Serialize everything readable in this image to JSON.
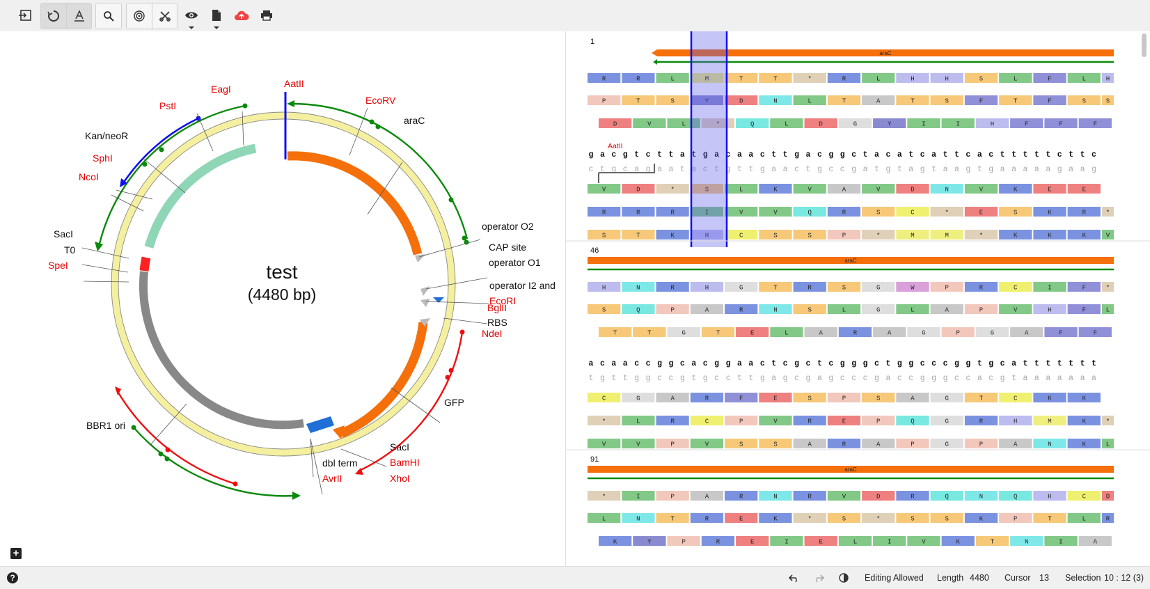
{
  "toolbar": {
    "icons": [
      "import-icon",
      "circular-view-icon",
      "linear-view-icon",
      "search-icon",
      "enzyme-digest-icon",
      "cut-icon",
      "eye-icon",
      "file-icon",
      "cloud-upload-icon",
      "print-icon"
    ]
  },
  "map": {
    "name": "test",
    "length_label": "(4480 bp)",
    "labels": {
      "AatII": "AatII",
      "EcoRV": "EcoRV",
      "araC": "araC",
      "EagI": "EagI",
      "PstI": "PstI",
      "KanNeoR": "Kan/neoR",
      "SphI": "SphI",
      "NcoI": "NcoI",
      "SacI1": "SacI",
      "T0": "T0",
      "SpeI": "SpeI",
      "BBR1ori": "BBR1 ori",
      "operatorO2": "operator O2",
      "CAPsite": "CAP site",
      "operatorO1": "operator O1",
      "operatorI2": "operator I2 and",
      "EcoRI": "EcoRI",
      "BglII": "BglII",
      "RBS": "RBS",
      "NdeI": "NdeI",
      "GFP": "GFP",
      "SacI2": "SacI",
      "BamHI": "BamHI",
      "XhoI": "XhoI",
      "dblterm": "dbl term",
      "AvrII": "AvrII"
    }
  },
  "sequence": {
    "blocks": [
      {
        "index": "1",
        "feature": "araC",
        "dna": "gacgtcttatgacaacttgacggctacatcattcactttttcttc",
        "comp": "ctgcagaatactgttgaactgccgatgtagtaagtgaaaaagaag",
        "enzyme": "AatII",
        "frames_top": [
          [
            "R",
            "R",
            "L",
            "M",
            "T",
            "T",
            "*",
            "R",
            "L",
            "H",
            "H",
            "S",
            "L",
            "F",
            "L",
            "H"
          ],
          [
            "P",
            "T",
            "S",
            "Y",
            "D",
            "N",
            "L",
            "T",
            "A",
            "T",
            "S",
            "F",
            "T",
            "F",
            "S",
            "S"
          ],
          [
            "D",
            "V",
            "L",
            "*",
            "Q",
            "L",
            "D",
            "G",
            "Y",
            "I",
            "I",
            "H",
            "F",
            "F",
            "F"
          ]
        ],
        "frames_bottom": [
          [
            "V",
            "D",
            "*",
            "S",
            "L",
            "K",
            "V",
            "A",
            "V",
            "D",
            "N",
            "V",
            "K",
            "E",
            "E"
          ],
          [
            "R",
            "R",
            "R",
            "I",
            "V",
            "V",
            "Q",
            "R",
            "S",
            "C",
            "*",
            "E",
            "S",
            "K",
            "R",
            "*"
          ],
          [
            "S",
            "T",
            "K",
            "H",
            "C",
            "S",
            "S",
            "P",
            "*",
            "M",
            "M",
            "*",
            "K",
            "K",
            "K",
            "V"
          ]
        ]
      },
      {
        "index": "46",
        "feature": "araC",
        "dna": "acaaccggcacggaactcgctcgggctggcccggtgcattttttt",
        "comp": "tgttggccgtgccttgagcgagcccgaccgggccacgtaaaaaaa",
        "frames_top": [
          [
            "H",
            "N",
            "R",
            "H",
            "G",
            "T",
            "R",
            "S",
            "G",
            "W",
            "P",
            "R",
            "C",
            "I",
            "F",
            "*"
          ],
          [
            "S",
            "Q",
            "P",
            "A",
            "R",
            "N",
            "S",
            "L",
            "G",
            "L",
            "A",
            "P",
            "V",
            "H",
            "F",
            "L"
          ],
          [
            "T",
            "T",
            "G",
            "T",
            "E",
            "L",
            "A",
            "R",
            "A",
            "G",
            "P",
            "G",
            "A",
            "F",
            "F"
          ]
        ],
        "frames_bottom": [
          [
            "C",
            "G",
            "A",
            "R",
            "F",
            "E",
            "S",
            "P",
            "S",
            "A",
            "G",
            "T",
            "C",
            "K",
            "K"
          ],
          [
            "*",
            "L",
            "R",
            "C",
            "P",
            "V",
            "R",
            "E",
            "P",
            "Q",
            "G",
            "R",
            "H",
            "M",
            "K",
            "*"
          ],
          [
            "V",
            "V",
            "P",
            "V",
            "S",
            "S",
            "A",
            "R",
            "A",
            "P",
            "G",
            "P",
            "A",
            "N",
            "K",
            "L"
          ]
        ]
      },
      {
        "index": "91",
        "feature": "araC",
        "frames_top": [
          [
            "*",
            "I",
            "P",
            "A",
            "R",
            "N",
            "R",
            "V",
            "D",
            "R",
            "Q",
            "N",
            "Q",
            "H",
            "C",
            "D"
          ],
          [
            "L",
            "N",
            "T",
            "R",
            "E",
            "K",
            "*",
            "S",
            "*",
            "S",
            "S",
            "K",
            "P",
            "T",
            "L",
            "R"
          ],
          [
            "K",
            "Y",
            "P",
            "R",
            "E",
            "I",
            "E",
            "L",
            "I",
            "V",
            "K",
            "T",
            "N",
            "I",
            "A"
          ]
        ]
      }
    ]
  },
  "aa_colors": {
    "A": "#c8c8c8",
    "R": "#7b92e0",
    "N": "#7ee8e8",
    "D": "#ef8080",
    "C": "#f0f070",
    "Q": "#78e8e0",
    "E": "#ef8080",
    "G": "#dedede",
    "H": "#bcbcef",
    "I": "#82c887",
    "L": "#82c887",
    "K": "#7b92e0",
    "M": "#efef80",
    "F": "#9090d8",
    "P": "#f2c8bc",
    "S": "#f6c878",
    "T": "#f6c878",
    "W": "#d9a0d9",
    "Y": "#8a8ad0",
    "V": "#82c887",
    "*": "#e0d0b8"
  },
  "status": {
    "editing": "Editing Allowed",
    "length_label": "Length",
    "length_value": "4480",
    "cursor_label": "Cursor",
    "cursor_value": "13",
    "selection_label": "Selection",
    "selection_value": "10 : 12 (3)"
  }
}
